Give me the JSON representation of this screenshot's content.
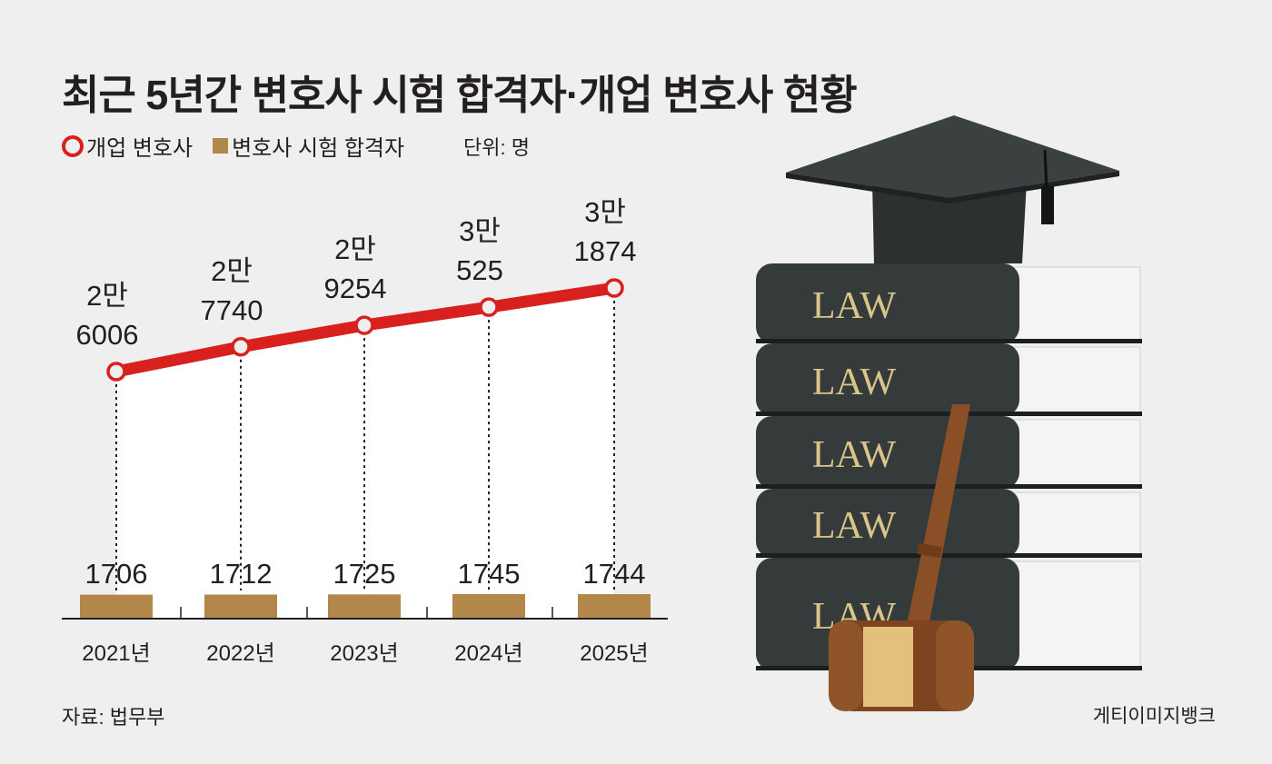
{
  "title": "최근 5년간 변호사 시험 합격자·개업 변호사 현황",
  "legend": {
    "line": "개업 변호사",
    "bar": "변호사 시험 합격자"
  },
  "unit": "단위: 명",
  "source": "자료: 법무부",
  "credit": "게티이미지뱅크",
  "image_text": "LAW",
  "colors": {
    "line": "#d8201e",
    "bar": "#b3864a",
    "background": "#efefef"
  },
  "chart_data": {
    "type": "line+bar",
    "categories": [
      "2021년",
      "2022년",
      "2023년",
      "2024년",
      "2025년"
    ],
    "series": [
      {
        "name": "개업 변호사",
        "type": "line",
        "values": [
          26006,
          27740,
          29254,
          30525,
          31874
        ],
        "labels": [
          [
            "2만",
            "6006"
          ],
          [
            "2만",
            "7740"
          ],
          [
            "2만",
            "9254"
          ],
          [
            "3만",
            "525"
          ],
          [
            "3만",
            "1874"
          ]
        ]
      },
      {
        "name": "변호사 시험 합격자",
        "type": "bar",
        "values": [
          1706,
          1712,
          1725,
          1745,
          1744
        ],
        "labels": [
          "1706",
          "1712",
          "1725",
          "1745",
          "1744"
        ]
      }
    ],
    "grid": false,
    "legend_position": "top-left"
  }
}
